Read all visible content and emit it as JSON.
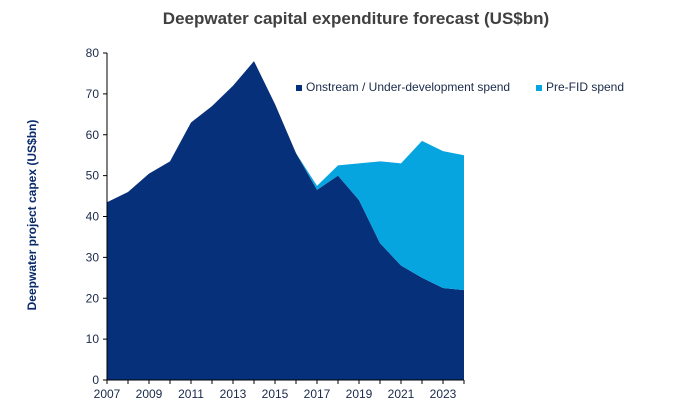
{
  "chart_data": {
    "type": "area",
    "stacked": true,
    "title": "Deepwater capital expenditure forecast (US$bn)",
    "xlabel": "",
    "ylabel": "Deepwater project capex (US$bn)",
    "x": [
      2007,
      2008,
      2009,
      2010,
      2011,
      2012,
      2013,
      2014,
      2015,
      2016,
      2017,
      2018,
      2019,
      2020,
      2021,
      2022,
      2023,
      2024
    ],
    "xlim": [
      2007,
      2024
    ],
    "ylim": [
      0,
      80
    ],
    "x_ticks": [
      "2007",
      "2009",
      "2011",
      "2013",
      "2015",
      "2017",
      "2019",
      "2021",
      "2023"
    ],
    "y_ticks": [
      "0",
      "10",
      "20",
      "30",
      "40",
      "50",
      "60",
      "70",
      "80"
    ],
    "grid": false,
    "legend_position": "top-right",
    "series": [
      {
        "name": "Onstream / Under-development spend",
        "color": "#06307a",
        "values": [
          43.5,
          46,
          50.5,
          53.5,
          63,
          67,
          72,
          78,
          67.5,
          55.5,
          46.5,
          50,
          44,
          33.5,
          28,
          25,
          22.5,
          22
        ]
      },
      {
        "name": "Pre-FID spend",
        "color": "#06a5e0",
        "values": [
          0,
          0,
          0,
          0,
          0,
          0,
          0,
          0,
          0,
          0,
          1,
          2.5,
          9,
          20,
          25,
          33.5,
          33.5,
          33
        ]
      }
    ]
  }
}
